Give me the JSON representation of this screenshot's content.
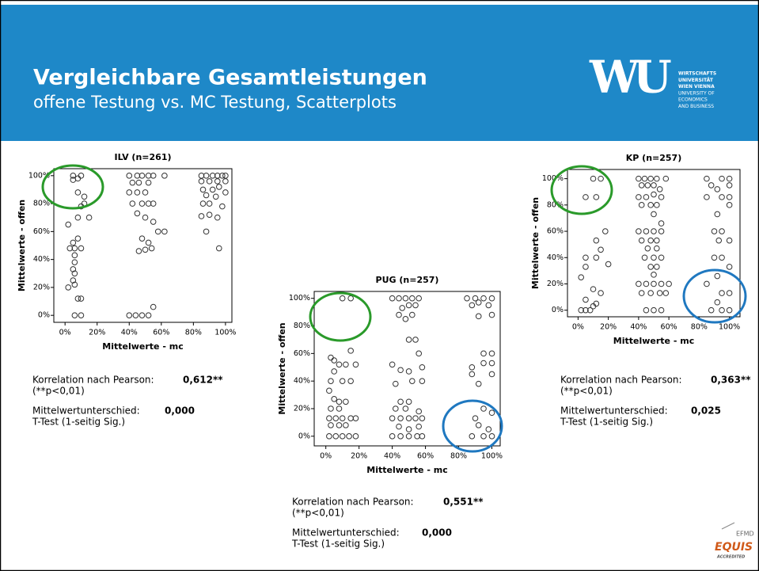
{
  "header": {
    "title": "Vergleichbare Gesamtleistungen",
    "subtitle": "offene Testung vs. MC Testung, Scatterplots"
  },
  "logo": {
    "mark": "WU",
    "lines": [
      "WIRTSCHAFTS",
      "UNIVERSITÄT",
      "WIEN VIENNA",
      "UNIVERSITY OF",
      "ECONOMICS",
      "AND BUSINESS"
    ]
  },
  "accreditation": {
    "org": "EFMD",
    "name": "EQUIS",
    "note": "ACCREDITED"
  },
  "chart_data": [
    {
      "type": "scatter",
      "title": "ILV (n=261)",
      "xlabel": "Mittelwerte - mc",
      "ylabel": "Mittelwerte - offen",
      "color": "#333333",
      "xlim": [
        -7,
        104
      ],
      "ylim": [
        -5,
        105
      ],
      "xticks": [
        {
          "value": 0,
          "label": "0%"
        },
        {
          "value": 20,
          "label": "20%"
        },
        {
          "value": 40,
          "label": "40%"
        },
        {
          "value": 60,
          "label": "60%"
        },
        {
          "value": 80,
          "label": "80%"
        },
        {
          "value": 100,
          "label": "100%"
        }
      ],
      "yticks": [
        {
          "value": 0,
          "label": "0%"
        },
        {
          "value": 20,
          "label": "20%"
        },
        {
          "value": 40,
          "label": "40%"
        },
        {
          "value": 60,
          "label": "60%"
        },
        {
          "value": 80,
          "label": "80%"
        },
        {
          "value": 100,
          "label": "100%"
        }
      ],
      "x": [
        5,
        5,
        8,
        10,
        8,
        12,
        10,
        12,
        15,
        8,
        2,
        5,
        8,
        3,
        6,
        10,
        6,
        6,
        5,
        6,
        5,
        6,
        2,
        8,
        10,
        6,
        10,
        40,
        45,
        48,
        52,
        55,
        62,
        42,
        46,
        52,
        40,
        45,
        50,
        42,
        48,
        52,
        55,
        45,
        50,
        55,
        58,
        62,
        48,
        52,
        50,
        46,
        54,
        40,
        44,
        48,
        52,
        55,
        85,
        88,
        92,
        95,
        98,
        100,
        85,
        90,
        95,
        100,
        86,
        92,
        96,
        100,
        88,
        94,
        90,
        86,
        98,
        85,
        90,
        95,
        88,
        96
      ],
      "y": [
        97,
        100,
        98,
        100,
        88,
        85,
        78,
        80,
        70,
        70,
        65,
        52,
        55,
        48,
        48,
        48,
        43,
        38,
        33,
        30,
        25,
        22,
        20,
        12,
        12,
        0,
        0,
        100,
        100,
        100,
        100,
        100,
        100,
        95,
        95,
        95,
        88,
        88,
        88,
        80,
        80,
        80,
        80,
        73,
        70,
        67,
        60,
        60,
        55,
        52,
        47,
        46,
        48,
        0,
        0,
        0,
        0,
        6,
        100,
        100,
        100,
        100,
        100,
        100,
        96,
        96,
        96,
        96,
        90,
        90,
        92,
        88,
        86,
        85,
        80,
        80,
        78,
        71,
        72,
        70,
        60,
        48
      ],
      "stats": {
        "corr_label": "Korrelation nach Pearson:",
        "corr": "0,612**",
        "corr_note": "(**p<0,01)",
        "diff_label": "Mittelwertunterschied:",
        "diff": "0,000",
        "diff_note": "T-Test (1-seitig Sig.)"
      }
    },
    {
      "type": "scatter",
      "title": "PUG (n=257)",
      "xlabel": "Mittelwerte - mc",
      "ylabel": "Mittelwerte - offen",
      "color": "#333333",
      "xlim": [
        -7,
        105
      ],
      "ylim": [
        -7,
        105
      ],
      "xticks": [
        {
          "value": 0,
          "label": "0%"
        },
        {
          "value": 20,
          "label": "20%"
        },
        {
          "value": 40,
          "label": "40%"
        },
        {
          "value": 60,
          "label": "60%"
        },
        {
          "value": 80,
          "label": "80%"
        },
        {
          "value": 100,
          "label": "100%"
        }
      ],
      "yticks": [
        {
          "value": 0,
          "label": "0%"
        },
        {
          "value": 20,
          "label": "20%"
        },
        {
          "value": 40,
          "label": "40%"
        },
        {
          "value": 60,
          "label": "60%"
        },
        {
          "value": 80,
          "label": "80%"
        },
        {
          "value": 100,
          "label": "100%"
        }
      ],
      "x": [
        10,
        15,
        3,
        5,
        8,
        12,
        15,
        5,
        3,
        10,
        2,
        5,
        8,
        12,
        3,
        8,
        2,
        6,
        10,
        15,
        18,
        3,
        8,
        12,
        2,
        6,
        10,
        14,
        18,
        18,
        15,
        40,
        44,
        48,
        52,
        56,
        46,
        50,
        54,
        44,
        48,
        52,
        50,
        54,
        40,
        45,
        50,
        56,
        58,
        42,
        52,
        58,
        45,
        50,
        42,
        48,
        56,
        40,
        45,
        50,
        54,
        58,
        44,
        50,
        56,
        40,
        45,
        50,
        55,
        58,
        85,
        90,
        95,
        100,
        88,
        92,
        98,
        100,
        92,
        100,
        95,
        100,
        88,
        95,
        88,
        100,
        92,
        90,
        95,
        100,
        92,
        88,
        95,
        100,
        98
      ],
      "y": [
        100,
        100,
        57,
        55,
        52,
        52,
        62,
        47,
        40,
        40,
        33,
        27,
        25,
        25,
        20,
        20,
        13,
        13,
        13,
        13,
        13,
        8,
        8,
        8,
        0,
        0,
        0,
        0,
        0,
        52,
        40,
        100,
        100,
        100,
        100,
        100,
        93,
        95,
        95,
        88,
        85,
        88,
        70,
        70,
        52,
        48,
        47,
        60,
        50,
        38,
        40,
        40,
        25,
        25,
        20,
        20,
        18,
        13,
        13,
        13,
        13,
        13,
        7,
        5,
        7,
        0,
        0,
        0,
        0,
        0,
        100,
        100,
        100,
        100,
        95,
        97,
        95,
        88,
        87,
        60,
        60,
        53,
        50,
        53,
        45,
        45,
        38,
        13,
        20,
        17,
        8,
        0,
        0,
        0,
        5
      ],
      "stats": {
        "corr_label": "Korrelation nach Pearson:",
        "corr": "0,551**",
        "corr_note": "(**p<0,01)",
        "diff_label": "Mittelwertunterschied:",
        "diff": "0,000",
        "diff_note": "T-Test (1-seitig Sig.)"
      }
    },
    {
      "type": "scatter",
      "title": "KP (n=257)",
      "xlabel": "Mittelwerte - mc",
      "ylabel": "Mittelwerte - offen",
      "color": "#333333",
      "xlim": [
        -7,
        107
      ],
      "ylim": [
        -5,
        107
      ],
      "xticks": [
        {
          "value": 0,
          "label": "0%"
        },
        {
          "value": 20,
          "label": "20%"
        },
        {
          "value": 40,
          "label": "40%"
        },
        {
          "value": 60,
          "label": "60%"
        },
        {
          "value": 80,
          "label": "80%"
        },
        {
          "value": 100,
          "label": "100%"
        }
      ],
      "yticks": [
        {
          "value": 0,
          "label": "0%"
        },
        {
          "value": 20,
          "label": "20%"
        },
        {
          "value": 40,
          "label": "40%"
        },
        {
          "value": 60,
          "label": "60%"
        },
        {
          "value": 80,
          "label": "80%"
        },
        {
          "value": 100,
          "label": "100%"
        }
      ],
      "x": [
        5,
        10,
        15,
        12,
        5,
        5,
        2,
        5,
        5,
        2,
        8,
        10,
        12,
        15,
        12,
        18,
        20,
        10,
        15,
        12,
        40,
        44,
        48,
        52,
        58,
        42,
        46,
        50,
        54,
        40,
        45,
        50,
        55,
        42,
        48,
        52,
        50,
        55,
        40,
        45,
        50,
        55,
        42,
        48,
        52,
        46,
        52,
        44,
        50,
        55,
        48,
        52,
        50,
        40,
        45,
        50,
        55,
        60,
        42,
        48,
        54,
        58,
        45,
        50,
        55,
        85,
        95,
        100,
        88,
        92,
        100,
        85,
        95,
        100,
        92,
        90,
        95,
        100,
        93,
        90,
        95,
        100,
        92,
        85,
        95,
        100,
        92,
        88,
        95,
        100,
        100
      ],
      "y": [
        86,
        100,
        100,
        86,
        40,
        33,
        25,
        8,
        0,
        0,
        0,
        3,
        53,
        46,
        40,
        60,
        35,
        16,
        13,
        5,
        100,
        100,
        100,
        100,
        100,
        95,
        95,
        95,
        92,
        86,
        86,
        88,
        86,
        80,
        80,
        80,
        73,
        66,
        60,
        60,
        60,
        60,
        53,
        53,
        53,
        47,
        47,
        40,
        40,
        40,
        33,
        33,
        27,
        20,
        20,
        20,
        20,
        20,
        13,
        13,
        13,
        13,
        0,
        0,
        0,
        100,
        100,
        100,
        95,
        92,
        95,
        86,
        86,
        80,
        73,
        60,
        60,
        53,
        53,
        40,
        40,
        33,
        26,
        20,
        13,
        13,
        6,
        0,
        0,
        0,
        86
      ],
      "stats": {
        "corr_label": "Korrelation nach Pearson:",
        "corr": "0,363**",
        "corr_note": "(**p<0,01)",
        "diff_label": "Mittelwertunterschied:",
        "diff": "0,025",
        "diff_note": "T-Test (1-seitig Sig.)"
      }
    }
  ]
}
